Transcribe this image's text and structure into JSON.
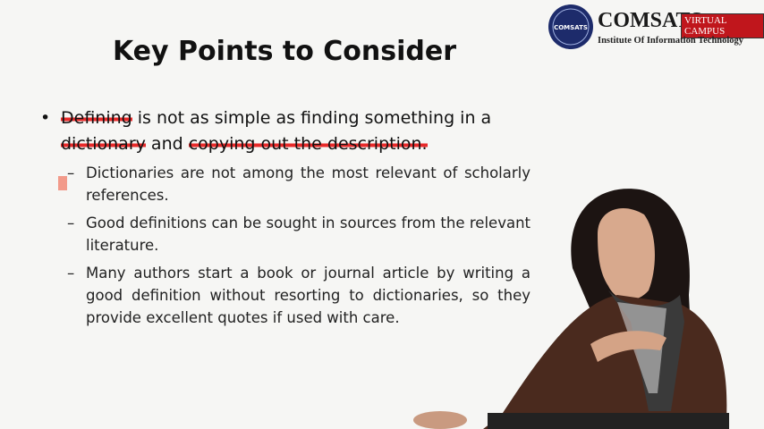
{
  "logo": {
    "badge": "COMSATS",
    "name": "COMSATS",
    "tag": "VIRTUAL CAMPUS",
    "subtitle": "Institute Of Information Technology"
  },
  "slide": {
    "title": "Key Points to Consider",
    "bullet": [
      "Defining",
      " is not as simple as finding something in a ",
      "dictionary",
      " and ",
      "copying out the description."
    ],
    "sub_bullets": [
      "Dictionaries are not among the most relevant of scholarly references.",
      "Good definitions can be sought in sources from the relevant literature.",
      "Many authors start a book or journal article by writing a good definition without resorting to dictionaries, so they provide excellent quotes if used with care."
    ]
  }
}
